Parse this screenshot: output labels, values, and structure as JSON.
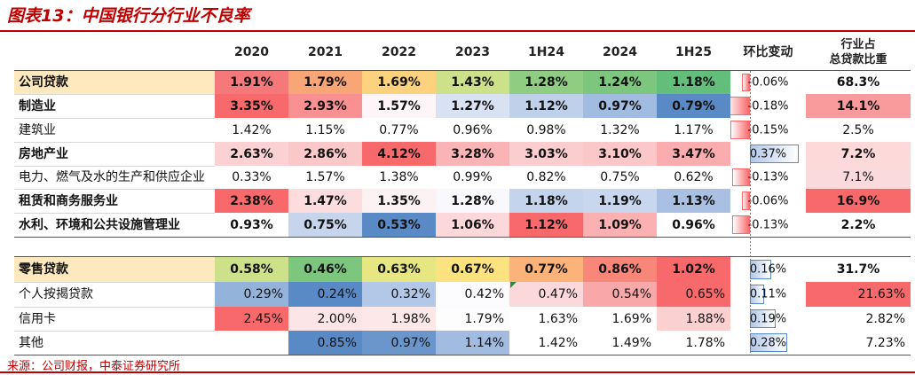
{
  "title": "图表13：中国银行分行业不良率",
  "source": "来源：公司财报，中泰证券研究所",
  "chart_data": {
    "type": "table",
    "columns": [
      "2020",
      "2021",
      "2022",
      "2023",
      "1H24",
      "2024",
      "1H25"
    ],
    "change_header": "环比变动",
    "share_header": [
      "行业占",
      "总贷款比重"
    ],
    "rows": [
      {
        "name": "公司贷款",
        "values": [
          "1.91%",
          "1.79%",
          "1.69%",
          "1.43%",
          "1.28%",
          "1.24%",
          "1.18%"
        ],
        "change": "-0.06%",
        "change_value": -0.06,
        "share": "68.3%",
        "summary": true
      },
      {
        "name": "制造业",
        "values": [
          "3.35%",
          "2.93%",
          "1.57%",
          "1.27%",
          "1.12%",
          "0.97%",
          "0.79%"
        ],
        "change": "-0.18%",
        "change_value": -0.18,
        "share": "14.1%"
      },
      {
        "name": "建筑业",
        "values": [
          "1.42%",
          "1.15%",
          "0.77%",
          "0.96%",
          "0.98%",
          "1.32%",
          "1.17%"
        ],
        "change": "-0.15%",
        "change_value": -0.15,
        "share": "2.5%"
      },
      {
        "name": "房地产业",
        "values": [
          "2.63%",
          "2.86%",
          "4.12%",
          "3.28%",
          "3.03%",
          "3.10%",
          "3.47%"
        ],
        "change": "0.37%",
        "change_value": 0.37,
        "share": "7.2%"
      },
      {
        "name": "电力、燃气及水的生产和供应企业",
        "values": [
          "0.33%",
          "1.57%",
          "1.38%",
          "0.99%",
          "0.82%",
          "0.75%",
          "0.62%"
        ],
        "change": "-0.13%",
        "change_value": -0.13,
        "share": "7.1%"
      },
      {
        "name": "租赁和商务服务业",
        "values": [
          "2.38%",
          "1.47%",
          "1.35%",
          "1.28%",
          "1.18%",
          "1.19%",
          "1.13%"
        ],
        "change": "-0.06%",
        "change_value": -0.06,
        "share": "16.9%"
      },
      {
        "name": "水利、环境和公共设施管理业",
        "values": [
          "0.93%",
          "0.75%",
          "0.53%",
          "1.06%",
          "1.12%",
          "1.09%",
          "0.96%"
        ],
        "change": "-0.13%",
        "change_value": -0.13,
        "share": "2.2%"
      },
      {
        "name": "零售贷款",
        "values": [
          "0.58%",
          "0.46%",
          "0.63%",
          "0.67%",
          "0.77%",
          "0.86%",
          "1.02%"
        ],
        "change": "0.16%",
        "change_value": 0.16,
        "share": "31.7%",
        "summary": true
      },
      {
        "name": "个人按揭贷款",
        "values": [
          "0.29%",
          "0.24%",
          "0.32%",
          "0.42%",
          "0.47%",
          "0.54%",
          "0.65%"
        ],
        "change": "0.11%",
        "change_value": 0.11,
        "share": "21.63%"
      },
      {
        "name": "信用卡",
        "values": [
          "2.45%",
          "2.00%",
          "1.98%",
          "1.79%",
          "1.63%",
          "1.69%",
          "1.88%"
        ],
        "change": "0.19%",
        "change_value": 0.19,
        "share": "2.82%"
      },
      {
        "name": "其他",
        "values": [
          "",
          "0.85%",
          "0.97%",
          "1.14%",
          "1.42%",
          "1.49%",
          "1.78%"
        ],
        "change": "0.28%",
        "change_value": 0.28,
        "share": "7.23%"
      }
    ],
    "colors": {
      "cells": [
        [
          "#f5797b",
          "#f9a677",
          "#fcd27f",
          "#cde08a",
          "#8fcd82",
          "#7cc67e",
          "#63be7b"
        ],
        [
          "#f8696b",
          "#f99193",
          "#fdf5f8",
          "#d8e2f2",
          "#bfd0ea",
          "#a2bbe0",
          "#5a8ac6"
        ],
        [
          "#ffffff",
          "#ffffff",
          "#ffffff",
          "#ffffff",
          "#ffffff",
          "#ffffff",
          "#ffffff"
        ],
        [
          "#fbd1d3",
          "#fbc8ca",
          "#f8696b",
          "#fab4b6",
          "#fbcdcf",
          "#fbc7c9",
          "#faacae"
        ],
        [
          "#ffffff",
          "#ffffff",
          "#ffffff",
          "#ffffff",
          "#ffffff",
          "#ffffff",
          "#ffffff"
        ],
        [
          "#f8696b",
          "#fcdcdd",
          "#fcf2f4",
          "#f9f9fd",
          "#c4d4ec",
          "#c8d7ed",
          "#a9c0e2"
        ],
        [
          "#ffffff",
          "#c6d5ec",
          "#5a8ac6",
          "#fdd8da",
          "#f8696b",
          "#fbb0b2",
          "#ffffff"
        ],
        [
          "#cde08a",
          "#7cc67e",
          "#e6e783",
          "#fde37f",
          "#fbb37a",
          "#f8877a",
          "#f8696b"
        ],
        [
          "#94b3db",
          "#5a8ac6",
          "#b3c7e6",
          "#fcfcff",
          "#fbd9db",
          "#f9a8aa",
          "#f8696b"
        ],
        [
          "#f8696b",
          "#fce5e6",
          "#fce8e9",
          "#fdfdfe",
          "#ffffff",
          "#ffffff",
          "#fbd0d1"
        ],
        [
          "#ffffff",
          "#5a8ac6",
          "#6a96cb",
          "#a2bbe0",
          "#ffffff",
          "#ffffff",
          "#ffffff"
        ]
      ],
      "share": [
        "#ffffff",
        "#f99a9c",
        "#ffffff",
        "#fdd9da",
        "#fbdadb",
        "#f8696b",
        "#ffffff",
        "#ffffff",
        "#f8696b",
        "#ffffff",
        "#ffffff"
      ],
      "summary_label": "#fde9bd",
      "neg_bar": "#f8696b",
      "pos_bar": "#b3c8e8",
      "accent": "#c00000"
    }
  }
}
